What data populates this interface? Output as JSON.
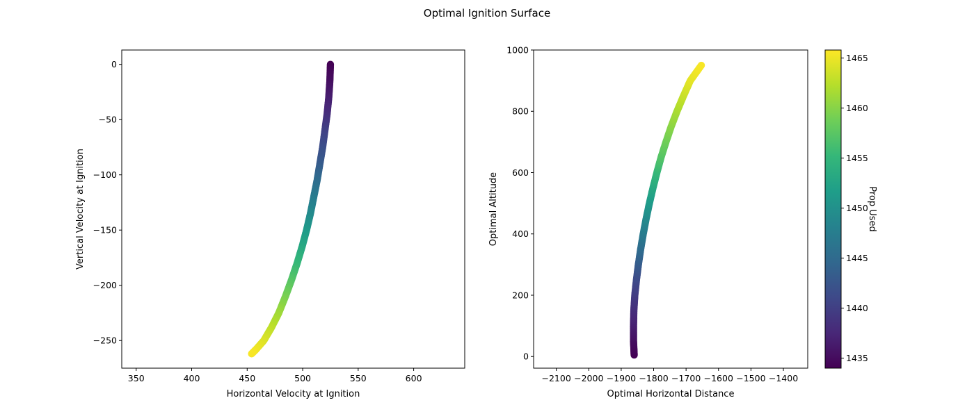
{
  "figure": {
    "title": "Optimal Ignition Surface"
  },
  "colors": {
    "viridis": [
      "#440154",
      "#482878",
      "#3e4989",
      "#31688e",
      "#26828e",
      "#1f9e89",
      "#35b779",
      "#6ece58",
      "#b5de2b",
      "#fde725"
    ]
  },
  "chart_data": [
    {
      "type": "scatter",
      "xlabel": "Horizontal Velocity at Ignition",
      "ylabel": "Vertical Velocity at Ignition",
      "xlim": [
        337,
        646
      ],
      "ylim": [
        -275,
        13
      ],
      "xticks": [
        350,
        400,
        450,
        500,
        550,
        600
      ],
      "yticks": [
        0,
        -50,
        -100,
        -150,
        -200,
        -250
      ],
      "color_by": "Prop Used",
      "points": [
        {
          "x": 525,
          "y": 0,
          "c": 1434
        },
        {
          "x": 524.5,
          "y": -15,
          "c": 1435
        },
        {
          "x": 523.5,
          "y": -30,
          "c": 1436.5
        },
        {
          "x": 522,
          "y": -45,
          "c": 1438
        },
        {
          "x": 520,
          "y": -60,
          "c": 1440
        },
        {
          "x": 518,
          "y": -75,
          "c": 1441.5
        },
        {
          "x": 515.5,
          "y": -90,
          "c": 1443
        },
        {
          "x": 513,
          "y": -105,
          "c": 1445
        },
        {
          "x": 510,
          "y": -120,
          "c": 1447
        },
        {
          "x": 507,
          "y": -135,
          "c": 1449
        },
        {
          "x": 503.5,
          "y": -150,
          "c": 1451
        },
        {
          "x": 499.5,
          "y": -165,
          "c": 1453
        },
        {
          "x": 495,
          "y": -180,
          "c": 1455
        },
        {
          "x": 490,
          "y": -195,
          "c": 1457
        },
        {
          "x": 484.5,
          "y": -210,
          "c": 1459
        },
        {
          "x": 478.5,
          "y": -225,
          "c": 1461
        },
        {
          "x": 472,
          "y": -238,
          "c": 1462.5
        },
        {
          "x": 465,
          "y": -250,
          "c": 1464
        },
        {
          "x": 458,
          "y": -258,
          "c": 1465
        },
        {
          "x": 454,
          "y": -262,
          "c": 1465.5
        }
      ]
    },
    {
      "type": "scatter",
      "xlabel": "Optimal Horizontal Distance",
      "ylabel": "Optimal Altitude",
      "xlim": [
        -2170,
        -1325
      ],
      "ylim": [
        -38,
        1000
      ],
      "xticks": [
        -2100,
        -2000,
        -1900,
        -1800,
        -1700,
        -1600,
        -1500,
        -1400
      ],
      "yticks": [
        0,
        200,
        400,
        600,
        800,
        1000
      ],
      "color_by": "Prop Used",
      "points": [
        {
          "x": -1860,
          "y": 5,
          "c": 1434
        },
        {
          "x": -1862,
          "y": 50,
          "c": 1435
        },
        {
          "x": -1862,
          "y": 100,
          "c": 1436.5
        },
        {
          "x": -1861,
          "y": 150,
          "c": 1438
        },
        {
          "x": -1858,
          "y": 200,
          "c": 1439.5
        },
        {
          "x": -1853,
          "y": 250,
          "c": 1441
        },
        {
          "x": -1847,
          "y": 300,
          "c": 1443
        },
        {
          "x": -1840,
          "y": 350,
          "c": 1445
        },
        {
          "x": -1832,
          "y": 400,
          "c": 1447
        },
        {
          "x": -1823,
          "y": 450,
          "c": 1449
        },
        {
          "x": -1813,
          "y": 500,
          "c": 1451
        },
        {
          "x": -1802,
          "y": 550,
          "c": 1453
        },
        {
          "x": -1790,
          "y": 600,
          "c": 1455
        },
        {
          "x": -1777,
          "y": 650,
          "c": 1457
        },
        {
          "x": -1762,
          "y": 700,
          "c": 1458.5
        },
        {
          "x": -1746,
          "y": 750,
          "c": 1460
        },
        {
          "x": -1728,
          "y": 800,
          "c": 1461.5
        },
        {
          "x": -1708,
          "y": 850,
          "c": 1463
        },
        {
          "x": -1687,
          "y": 900,
          "c": 1464.5
        },
        {
          "x": -1653,
          "y": 950,
          "c": 1465.5
        }
      ]
    }
  ],
  "colorbar": {
    "label": "Prop Used",
    "range": [
      1434,
      1465.8
    ],
    "ticks": [
      1435,
      1440,
      1445,
      1450,
      1455,
      1460,
      1465
    ]
  }
}
